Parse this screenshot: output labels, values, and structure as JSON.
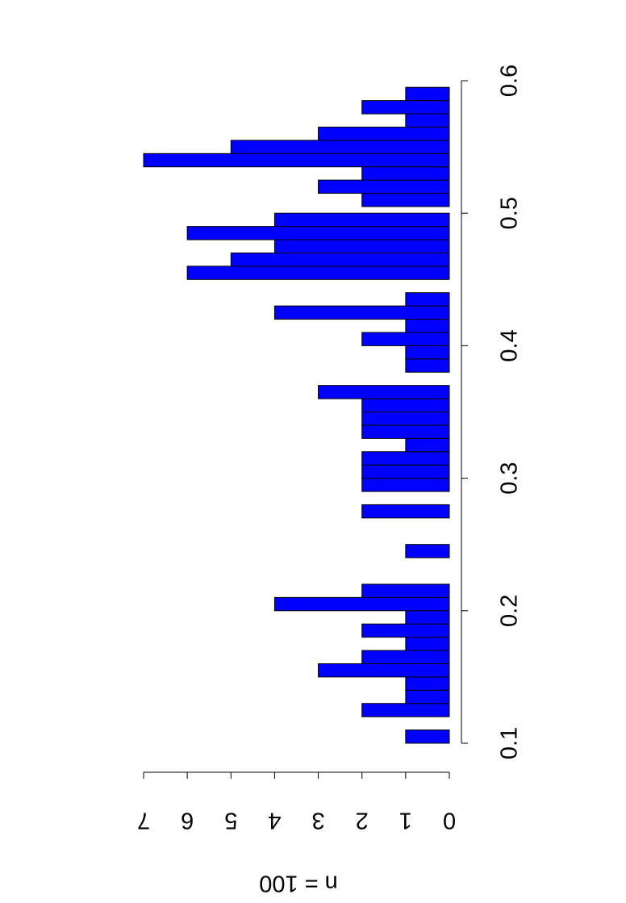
{
  "chart_data": {
    "type": "bar",
    "y_label": "n = 100",
    "x": [
      0.1,
      0.12,
      0.13,
      0.14,
      0.15,
      0.16,
      0.17,
      0.18,
      0.19,
      0.2,
      0.21,
      0.24,
      0.27,
      0.29,
      0.3,
      0.31,
      0.32,
      0.33,
      0.34,
      0.35,
      0.36,
      0.38,
      0.39,
      0.4,
      0.41,
      0.42,
      0.43,
      0.45,
      0.46,
      0.47,
      0.48,
      0.49,
      0.505,
      0.515,
      0.525,
      0.535,
      0.545,
      0.555,
      0.565,
      0.575,
      0.585
    ],
    "values": [
      1,
      2,
      1,
      1,
      3,
      2,
      1,
      2,
      1,
      4,
      2,
      1,
      2,
      2,
      2,
      2,
      1,
      2,
      2,
      2,
      3,
      1,
      1,
      2,
      1,
      4,
      1,
      6,
      5,
      4,
      6,
      4,
      2,
      3,
      2,
      7,
      5,
      3,
      1,
      2,
      1
    ],
    "color": "#0000ff",
    "xlim": [
      0.1,
      0.6
    ],
    "xticks": [
      0.1,
      0.2,
      0.3,
      0.4,
      0.5,
      0.6
    ],
    "ylim": [
      0,
      7
    ],
    "yticks": [
      0,
      1,
      2,
      3,
      4,
      5,
      6,
      7
    ]
  }
}
